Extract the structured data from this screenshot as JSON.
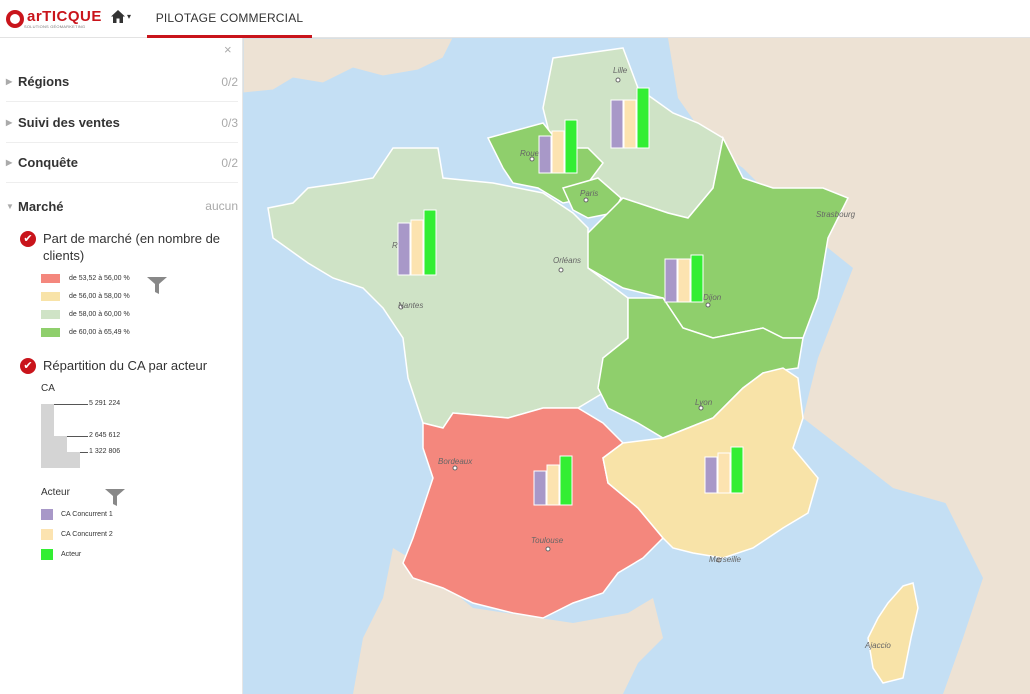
{
  "app": {
    "logo_text": "arTICQUE",
    "logo_subtext": "SOLUTIONS GÉOMARKETING",
    "home_caret": "▾",
    "tab_label": "PILOTAGE COMMERCIAL"
  },
  "sidebar": {
    "close_glyph": "×",
    "sections": [
      {
        "label": "Régions",
        "count": "0/2"
      },
      {
        "label": "Suivi des ventes",
        "count": "0/3"
      },
      {
        "label": "Conquête",
        "count": "0/2"
      }
    ],
    "marche": {
      "label": "Marché",
      "count": "aucun"
    },
    "layer1": {
      "title": "Part de marché (en nombre de clients)",
      "legend": [
        {
          "label": "de 53,52 à 56,00 %",
          "color": "#f4877d"
        },
        {
          "label": "de 56,00 à 58,00 %",
          "color": "#f8e3a8"
        },
        {
          "label": "de 58,00 à 60,00 %",
          "color": "#cfe3c6"
        },
        {
          "label": "de 60,00 à 65,49 %",
          "color": "#8fcf6c"
        }
      ]
    },
    "layer2": {
      "title": "Répartition du CA par acteur",
      "ca_label": "CA",
      "ca_values": [
        "5 291 224",
        "2 645 612",
        "1 322 806"
      ],
      "actor_label": "Acteur",
      "actors": [
        {
          "label": "CA Concurrent 1",
          "color": "#a898c8"
        },
        {
          "label": "CA Concurrent 2",
          "color": "#fce3b0"
        },
        {
          "label": "Acteur",
          "color": "#33ee33"
        }
      ]
    }
  },
  "map": {
    "colors": {
      "sea": "#c4dff4",
      "land": "#ede2d4",
      "class1": "#f4877d",
      "class2": "#f8e3a8",
      "class3": "#cfe3c6",
      "class4": "#8fcf6c",
      "border": "#ffffff"
    },
    "cities": [
      "Lille",
      "Rouen",
      "Paris",
      "Strasbourg",
      "Rennes",
      "Orléans",
      "Nantes",
      "Dijon",
      "Lyon",
      "Bordeaux",
      "Toulouse",
      "Marseille",
      "Ajaccio"
    ]
  }
}
